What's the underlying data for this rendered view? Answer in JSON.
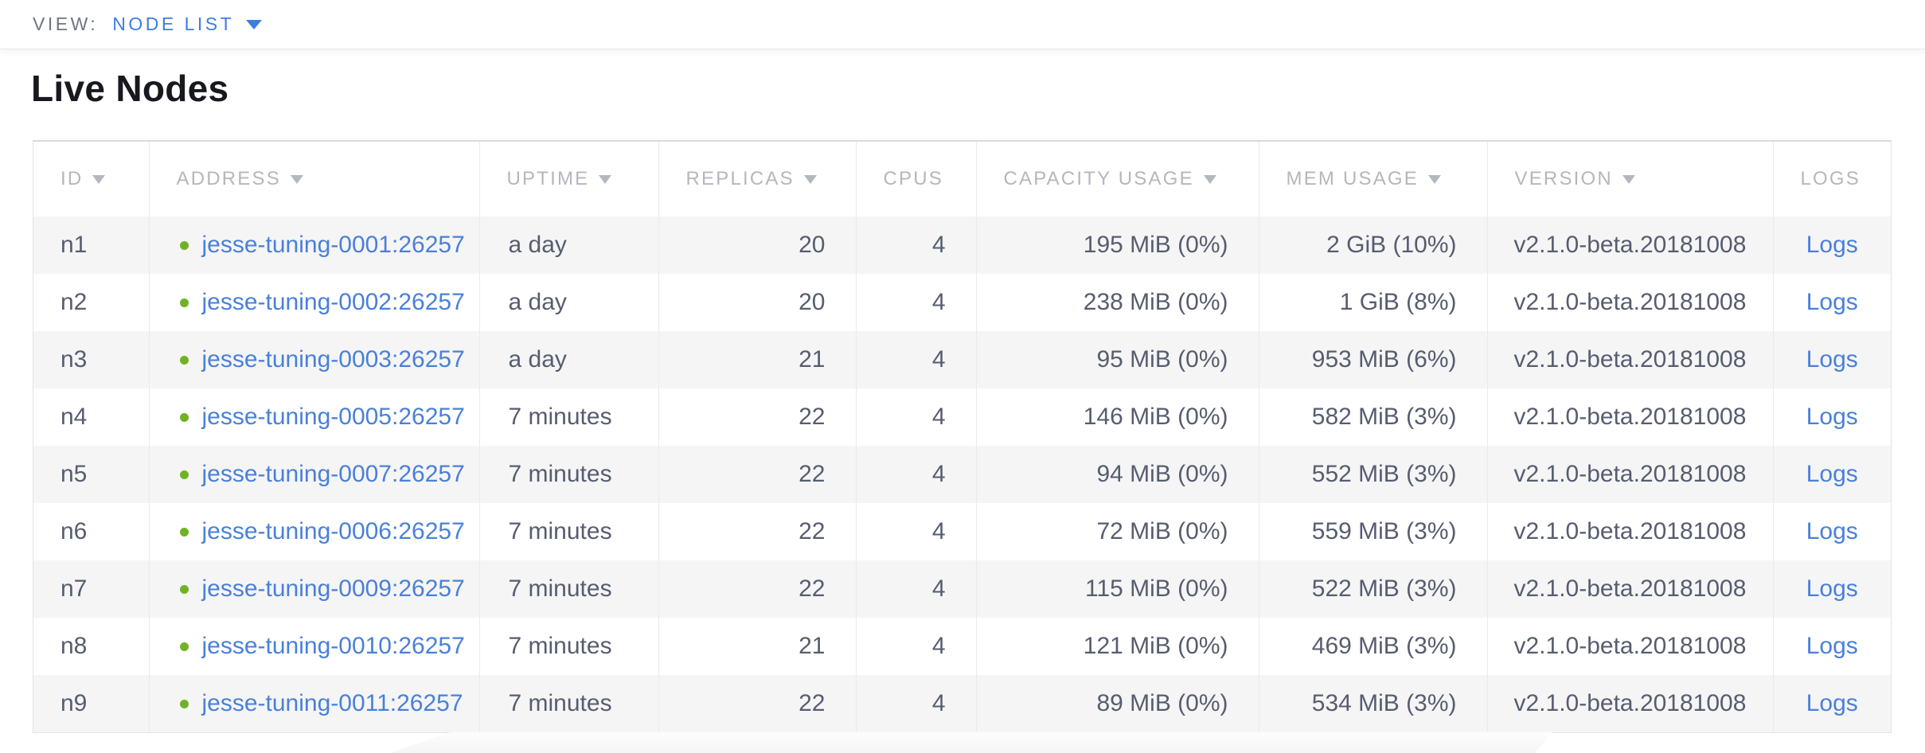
{
  "view_bar": {
    "label": "VIEW:",
    "selected": "NODE LIST"
  },
  "page": {
    "title": "Live Nodes"
  },
  "colors": {
    "accent_blue": "#3f7de0",
    "link_blue": "#4a80d9",
    "live_green": "#71b225"
  },
  "table": {
    "columns": [
      {
        "key": "id",
        "label": "ID",
        "sortable": true,
        "align": "left"
      },
      {
        "key": "address",
        "label": "ADDRESS",
        "sortable": true,
        "align": "left"
      },
      {
        "key": "uptime",
        "label": "UPTIME",
        "sortable": true,
        "align": "left"
      },
      {
        "key": "replicas",
        "label": "REPLICAS",
        "sortable": true,
        "align": "right"
      },
      {
        "key": "cpus",
        "label": "CPUS",
        "sortable": false,
        "align": "right"
      },
      {
        "key": "capacity",
        "label": "CAPACITY USAGE",
        "sortable": true,
        "align": "right"
      },
      {
        "key": "mem",
        "label": "MEM USAGE",
        "sortable": true,
        "align": "right"
      },
      {
        "key": "version",
        "label": "VERSION",
        "sortable": true,
        "align": "left"
      },
      {
        "key": "logs",
        "label": "LOGS",
        "sortable": false,
        "align": "center"
      }
    ],
    "rows": [
      {
        "id": "n1",
        "status": "live",
        "address": "jesse-tuning-0001:26257",
        "uptime": "a day",
        "replicas": "20",
        "cpus": "4",
        "capacity": "195 MiB (0%)",
        "mem": "2 GiB (10%)",
        "version": "v2.1.0-beta.20181008",
        "logs": "Logs"
      },
      {
        "id": "n2",
        "status": "live",
        "address": "jesse-tuning-0002:26257",
        "uptime": "a day",
        "replicas": "20",
        "cpus": "4",
        "capacity": "238 MiB (0%)",
        "mem": "1 GiB (8%)",
        "version": "v2.1.0-beta.20181008",
        "logs": "Logs"
      },
      {
        "id": "n3",
        "status": "live",
        "address": "jesse-tuning-0003:26257",
        "uptime": "a day",
        "replicas": "21",
        "cpus": "4",
        "capacity": "95 MiB (0%)",
        "mem": "953 MiB (6%)",
        "version": "v2.1.0-beta.20181008",
        "logs": "Logs"
      },
      {
        "id": "n4",
        "status": "live",
        "address": "jesse-tuning-0005:26257",
        "uptime": "7 minutes",
        "replicas": "22",
        "cpus": "4",
        "capacity": "146 MiB (0%)",
        "mem": "582 MiB (3%)",
        "version": "v2.1.0-beta.20181008",
        "logs": "Logs"
      },
      {
        "id": "n5",
        "status": "live",
        "address": "jesse-tuning-0007:26257",
        "uptime": "7 minutes",
        "replicas": "22",
        "cpus": "4",
        "capacity": "94 MiB (0%)",
        "mem": "552 MiB (3%)",
        "version": "v2.1.0-beta.20181008",
        "logs": "Logs"
      },
      {
        "id": "n6",
        "status": "live",
        "address": "jesse-tuning-0006:26257",
        "uptime": "7 minutes",
        "replicas": "22",
        "cpus": "4",
        "capacity": "72 MiB (0%)",
        "mem": "559 MiB (3%)",
        "version": "v2.1.0-beta.20181008",
        "logs": "Logs"
      },
      {
        "id": "n7",
        "status": "live",
        "address": "jesse-tuning-0009:26257",
        "uptime": "7 minutes",
        "replicas": "22",
        "cpus": "4",
        "capacity": "115 MiB (0%)",
        "mem": "522 MiB (3%)",
        "version": "v2.1.0-beta.20181008",
        "logs": "Logs"
      },
      {
        "id": "n8",
        "status": "live",
        "address": "jesse-tuning-0010:26257",
        "uptime": "7 minutes",
        "replicas": "21",
        "cpus": "4",
        "capacity": "121 MiB (0%)",
        "mem": "469 MiB (3%)",
        "version": "v2.1.0-beta.20181008",
        "logs": "Logs"
      },
      {
        "id": "n9",
        "status": "live",
        "address": "jesse-tuning-0011:26257",
        "uptime": "7 minutes",
        "replicas": "22",
        "cpus": "4",
        "capacity": "89 MiB (0%)",
        "mem": "534 MiB (3%)",
        "version": "v2.1.0-beta.20181008",
        "logs": "Logs"
      }
    ]
  }
}
